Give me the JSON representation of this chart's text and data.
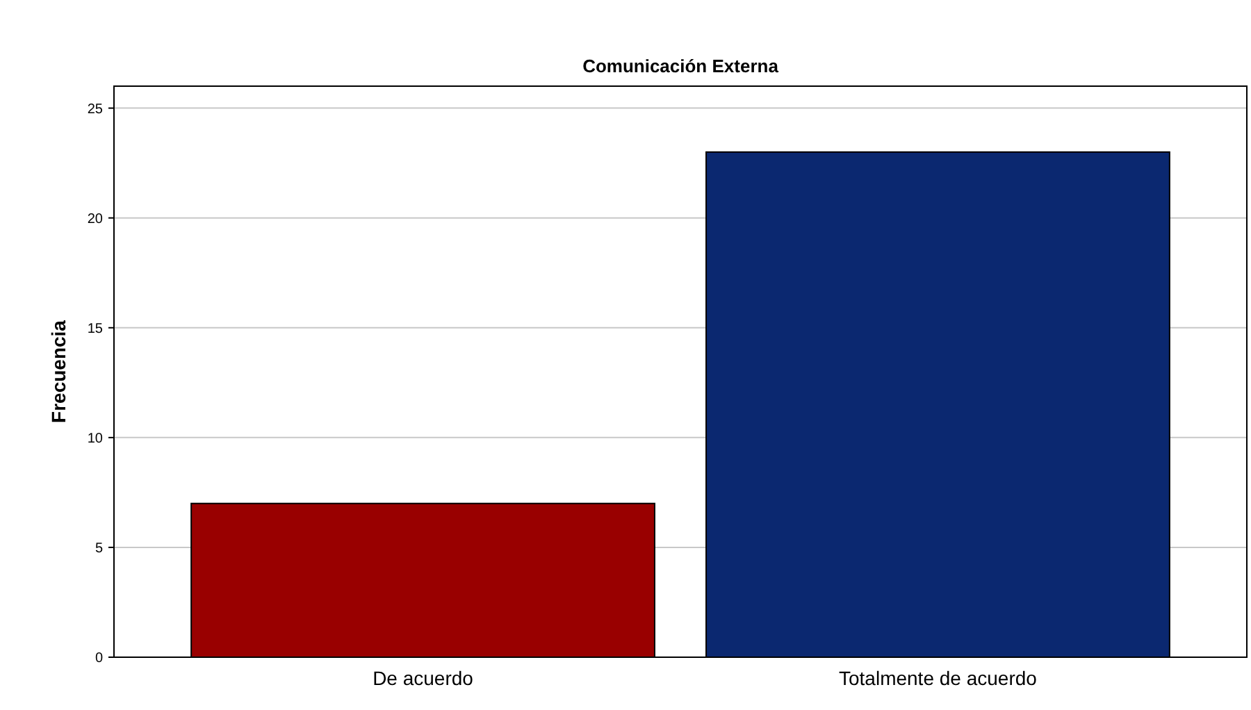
{
  "chart_data": {
    "type": "bar",
    "title": "Comunicación Externa",
    "ylabel": "Frecuencia",
    "categories": [
      "De acuerdo",
      "Totalmente de acuerdo"
    ],
    "values": [
      7,
      23
    ],
    "colors": [
      "#990000",
      "#0b2870"
    ],
    "ylim": [
      0,
      26
    ],
    "yticks": [
      0,
      5,
      10,
      15,
      20,
      25
    ],
    "grid": "y"
  }
}
